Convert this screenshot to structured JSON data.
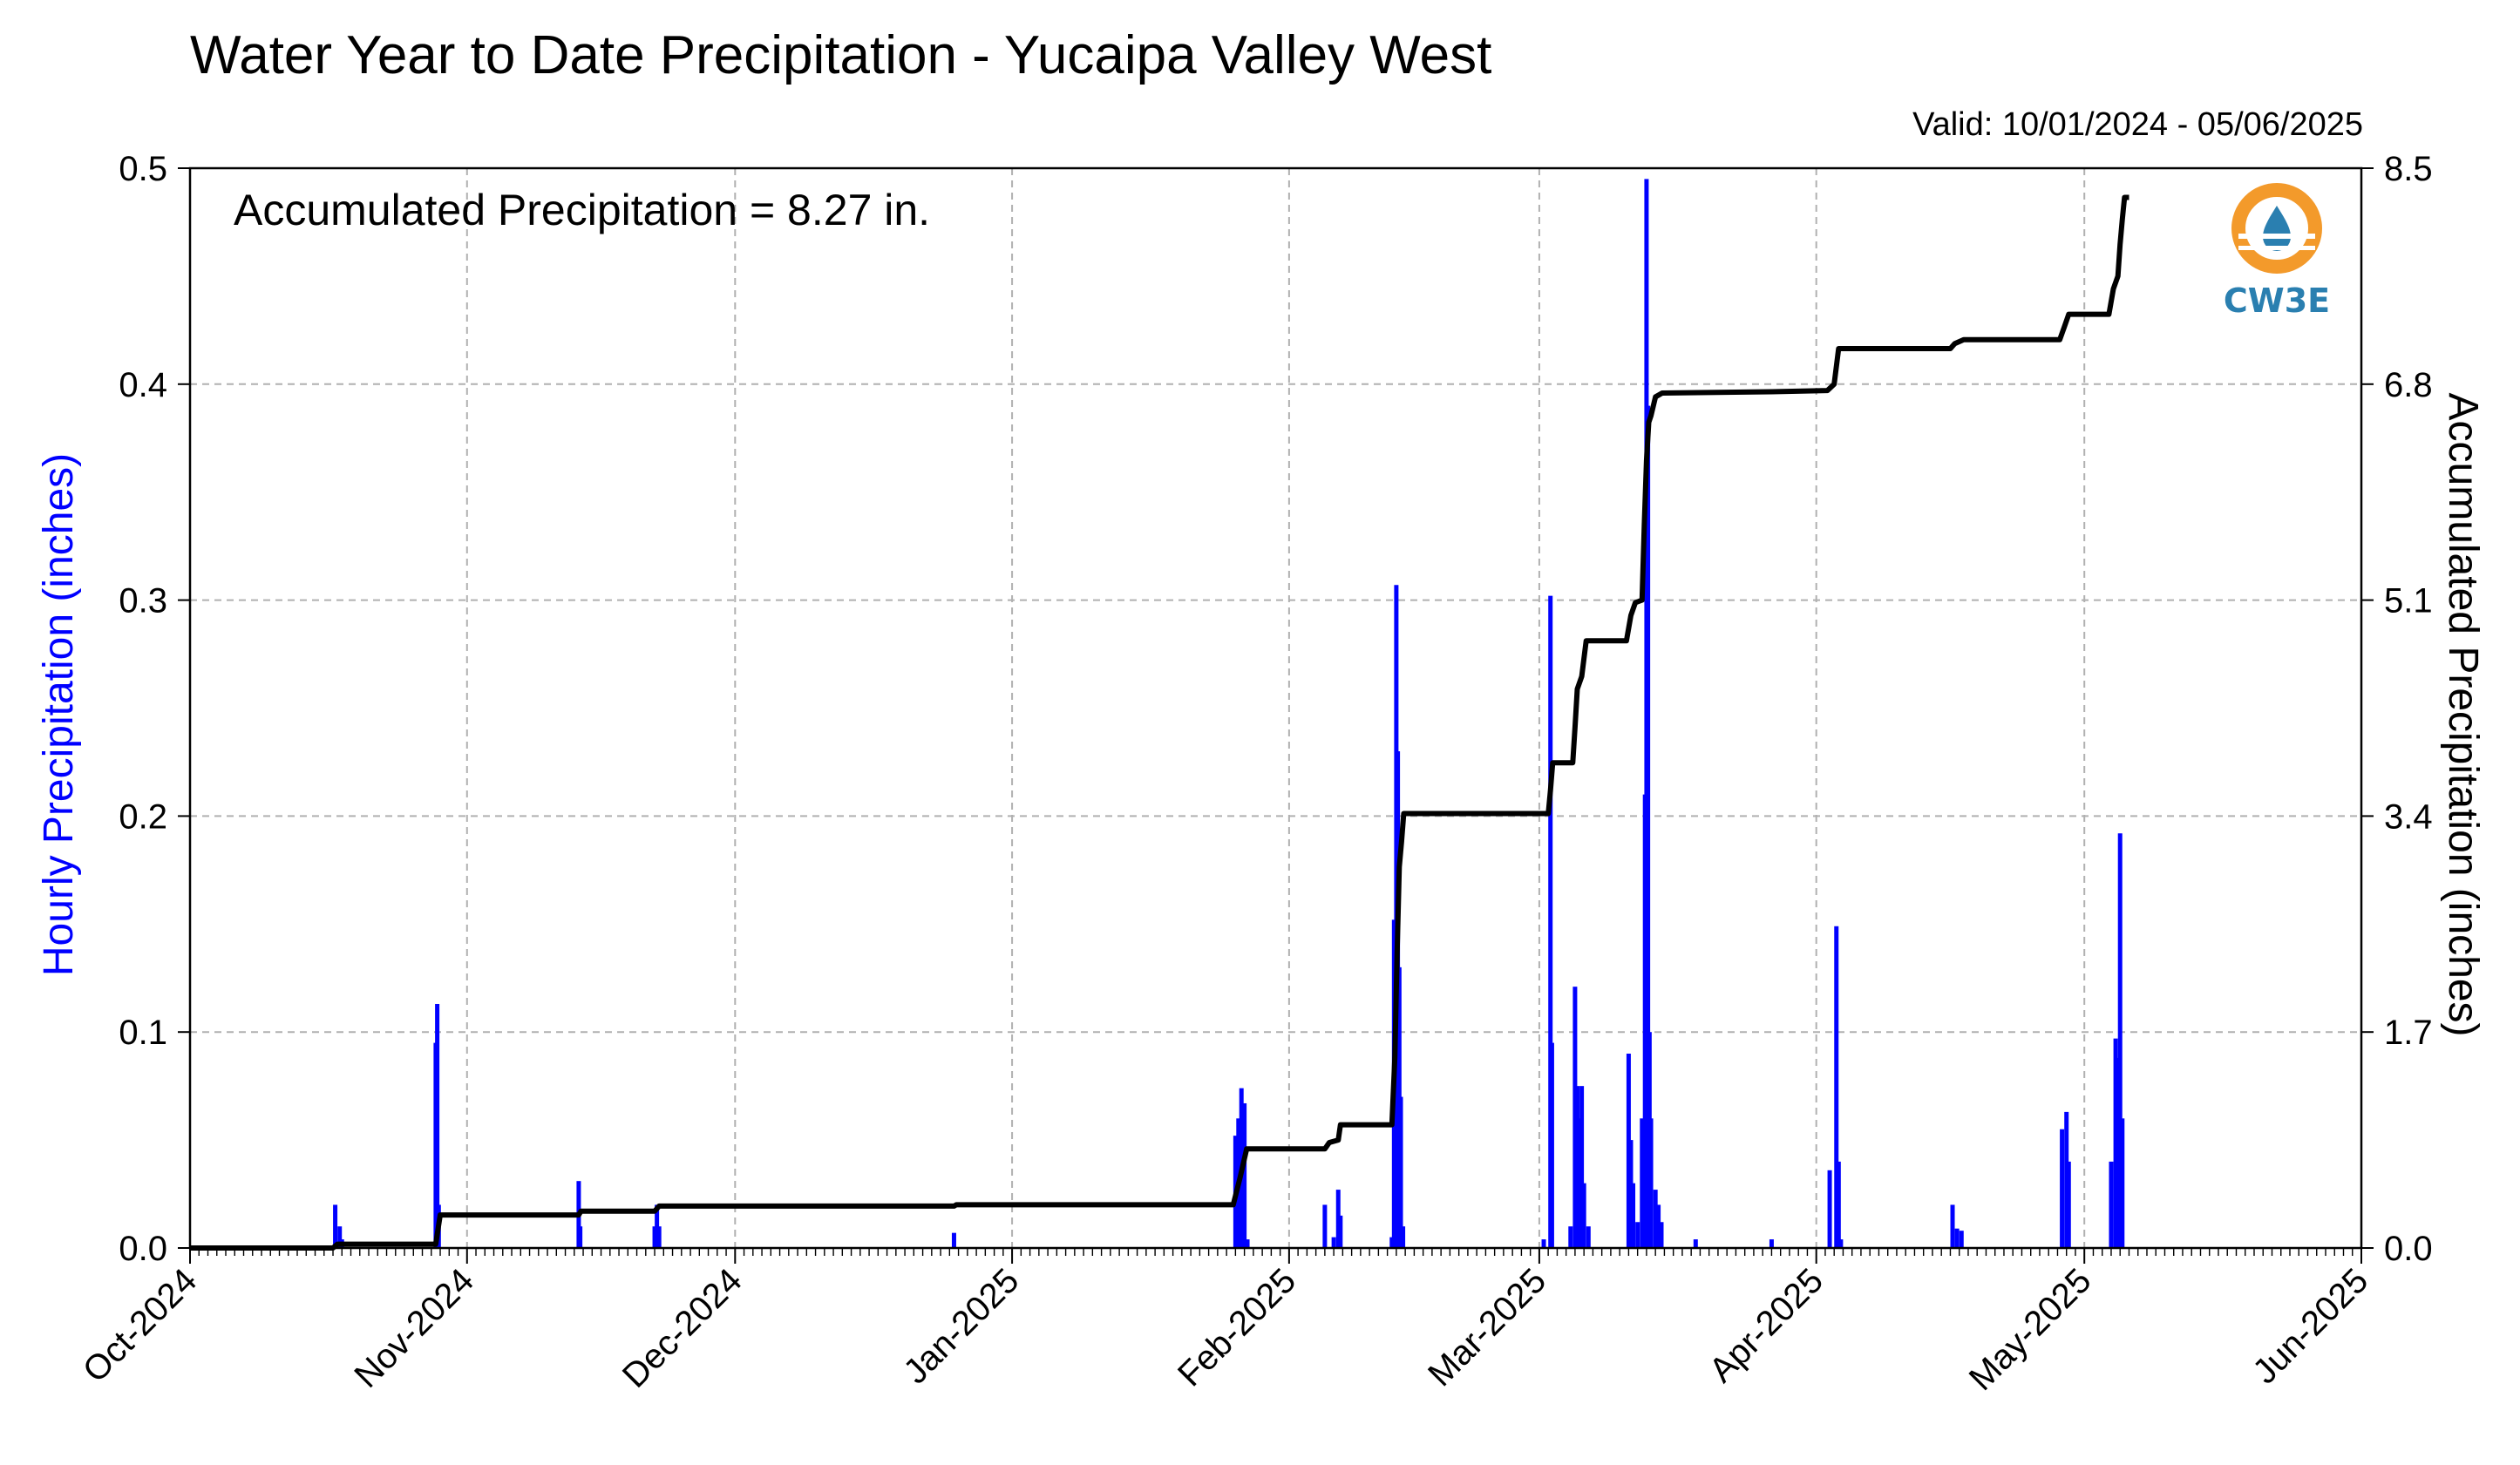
{
  "header": {
    "title": "Water Year to Date Precipitation - Yucaipa Valley West",
    "valid": "Valid: 10/01/2024 - 05/06/2025"
  },
  "annotation": "Accumulated Precipitation = 8.27 in.",
  "logo": {
    "text": "CW3E",
    "colors": {
      "orange": "#f39a2b",
      "blue": "#2a7fb0"
    }
  },
  "colors": {
    "hourly": "#0000ff",
    "accumulated": "#000000",
    "grid": "#b0b0b0"
  },
  "chart_data": {
    "type": "bar",
    "title": "Water Year to Date Precipitation - Yucaipa Valley West",
    "x_start": "2024-10-01",
    "x_end": "2025-06-01",
    "xticks": [
      {
        "date": "2024-10-01",
        "label": "Oct-2024"
      },
      {
        "date": "2024-11-01",
        "label": "Nov-2024"
      },
      {
        "date": "2024-12-01",
        "label": "Dec-2024"
      },
      {
        "date": "2025-01-01",
        "label": "Jan-2025"
      },
      {
        "date": "2025-02-01",
        "label": "Feb-2025"
      },
      {
        "date": "2025-03-01",
        "label": "Mar-2025"
      },
      {
        "date": "2025-04-01",
        "label": "Apr-2025"
      },
      {
        "date": "2025-05-01",
        "label": "May-2025"
      },
      {
        "date": "2025-06-01",
        "label": "Jun-2025"
      }
    ],
    "y_left": {
      "label": "Hourly Precipitation (inches)",
      "range": [
        0,
        0.5
      ],
      "ticks": [
        "0.0",
        "0.1",
        "0.2",
        "0.3",
        "0.4",
        "0.5"
      ]
    },
    "y_right": {
      "label": "Accumulated Precipitation (inches)",
      "range": [
        0,
        8.5
      ],
      "ticks": [
        "0.0",
        "1.7",
        "3.4",
        "5.1",
        "6.8",
        "8.5"
      ]
    },
    "grid": true,
    "series": [
      {
        "name": "Hourly Precipitation",
        "type": "bar",
        "points": [
          [
            "2024-10-17 06:00",
            0.02
          ],
          [
            "2024-10-17 18:00",
            0.01
          ],
          [
            "2024-10-18 00:00",
            0.004
          ],
          [
            "2024-10-28 12:00",
            0.095
          ],
          [
            "2024-10-28 16:00",
            0.113
          ],
          [
            "2024-10-28 20:00",
            0.02
          ],
          [
            "2024-11-13 12:00",
            0.031
          ],
          [
            "2024-11-13 16:00",
            0.01
          ],
          [
            "2024-11-22 00:00",
            0.01
          ],
          [
            "2024-11-22 06:00",
            0.02
          ],
          [
            "2024-11-22 12:00",
            0.01
          ],
          [
            "2024-12-25 12:00",
            0.007
          ],
          [
            "2025-01-26 00:00",
            0.052
          ],
          [
            "2025-01-26 08:00",
            0.06
          ],
          [
            "2025-01-26 16:00",
            0.074
          ],
          [
            "2025-01-27 00:00",
            0.067
          ],
          [
            "2025-01-27 08:00",
            0.004
          ],
          [
            "2025-02-05 00:00",
            0.02
          ],
          [
            "2025-02-06 00:00",
            0.005
          ],
          [
            "2025-02-06 12:00",
            0.027
          ],
          [
            "2025-02-06 18:00",
            0.015
          ],
          [
            "2025-02-12 12:00",
            0.005
          ],
          [
            "2025-02-12 18:00",
            0.152
          ],
          [
            "2025-02-13 00:00",
            0.307
          ],
          [
            "2025-02-13 04:00",
            0.23
          ],
          [
            "2025-02-13 08:00",
            0.13
          ],
          [
            "2025-02-13 12:00",
            0.07
          ],
          [
            "2025-02-13 18:00",
            0.01
          ],
          [
            "2025-03-01 12:00",
            0.004
          ],
          [
            "2025-03-02 06:00",
            0.302
          ],
          [
            "2025-03-02 10:00",
            0.095
          ],
          [
            "2025-03-04 12:00",
            0.01
          ],
          [
            "2025-03-05 00:00",
            0.121
          ],
          [
            "2025-03-05 06:00",
            0.075
          ],
          [
            "2025-03-05 12:00",
            0.06
          ],
          [
            "2025-03-05 18:00",
            0.075
          ],
          [
            "2025-03-06 00:00",
            0.03
          ],
          [
            "2025-03-06 12:00",
            0.01
          ],
          [
            "2025-03-11 00:00",
            0.09
          ],
          [
            "2025-03-11 06:00",
            0.05
          ],
          [
            "2025-03-11 12:00",
            0.03
          ],
          [
            "2025-03-12 00:00",
            0.012
          ],
          [
            "2025-03-12 12:00",
            0.06
          ],
          [
            "2025-03-12 20:00",
            0.21
          ],
          [
            "2025-03-13 00:00",
            0.495
          ],
          [
            "2025-03-13 04:00",
            0.39
          ],
          [
            "2025-03-13 08:00",
            0.1
          ],
          [
            "2025-03-13 12:00",
            0.06
          ],
          [
            "2025-03-14 00:00",
            0.027
          ],
          [
            "2025-03-14 08:00",
            0.02
          ],
          [
            "2025-03-14 16:00",
            0.012
          ],
          [
            "2025-03-18 12:00",
            0.004
          ],
          [
            "2025-03-27 00:00",
            0.004
          ],
          [
            "2025-04-02 12:00",
            0.036
          ],
          [
            "2025-04-03 06:00",
            0.149
          ],
          [
            "2025-04-03 12:00",
            0.04
          ],
          [
            "2025-04-03 18:00",
            0.004
          ],
          [
            "2025-04-16 06:00",
            0.02
          ],
          [
            "2025-04-16 18:00",
            0.009
          ],
          [
            "2025-04-17 06:00",
            0.008
          ],
          [
            "2025-04-28 12:00",
            0.055
          ],
          [
            "2025-04-29 00:00",
            0.063
          ],
          [
            "2025-04-29 06:00",
            0.04
          ],
          [
            "2025-05-04 00:00",
            0.04
          ],
          [
            "2025-05-04 12:00",
            0.097
          ],
          [
            "2025-05-04 18:00",
            0.088
          ],
          [
            "2025-05-05 00:00",
            0.192
          ],
          [
            "2025-05-05 06:00",
            0.06
          ]
        ]
      },
      {
        "name": "Accumulated Precipitation",
        "type": "line",
        "points": [
          [
            "2024-10-01 00:00",
            0.0
          ],
          [
            "2024-10-17 00:00",
            0.0
          ],
          [
            "2024-10-17 12:00",
            0.03
          ],
          [
            "2024-10-28 12:00",
            0.03
          ],
          [
            "2024-10-29 00:00",
            0.26
          ],
          [
            "2024-11-13 12:00",
            0.26
          ],
          [
            "2024-11-13 18:00",
            0.29
          ],
          [
            "2024-11-22 00:00",
            0.29
          ],
          [
            "2024-11-22 12:00",
            0.33
          ],
          [
            "2024-12-25 12:00",
            0.33
          ],
          [
            "2024-12-25 18:00",
            0.34
          ],
          [
            "2025-01-25 18:00",
            0.34
          ],
          [
            "2025-01-26 12:00",
            0.55
          ],
          [
            "2025-01-27 06:00",
            0.78
          ],
          [
            "2025-02-05 00:00",
            0.78
          ],
          [
            "2025-02-05 12:00",
            0.83
          ],
          [
            "2025-02-06 12:00",
            0.85
          ],
          [
            "2025-02-06 18:00",
            0.97
          ],
          [
            "2025-02-12 12:00",
            0.97
          ],
          [
            "2025-02-12 20:00",
            1.5
          ],
          [
            "2025-02-13 02:00",
            2.3
          ],
          [
            "2025-02-13 08:00",
            3.0
          ],
          [
            "2025-02-13 14:00",
            3.2
          ],
          [
            "2025-02-13 20:00",
            3.42
          ],
          [
            "2025-03-02 00:00",
            3.42
          ],
          [
            "2025-03-02 06:00",
            3.6
          ],
          [
            "2025-03-02 12:00",
            3.82
          ],
          [
            "2025-03-04 18:00",
            3.82
          ],
          [
            "2025-03-05 00:00",
            4.1
          ],
          [
            "2025-03-05 06:00",
            4.4
          ],
          [
            "2025-03-05 18:00",
            4.5
          ],
          [
            "2025-03-06 06:00",
            4.78
          ],
          [
            "2025-03-10 18:00",
            4.78
          ],
          [
            "2025-03-11 06:00",
            4.98
          ],
          [
            "2025-03-11 18:00",
            5.08
          ],
          [
            "2025-03-12 12:00",
            5.1
          ],
          [
            "2025-03-12 18:00",
            5.7
          ],
          [
            "2025-03-13 00:00",
            6.2
          ],
          [
            "2025-03-13 06:00",
            6.5
          ],
          [
            "2025-03-13 12:00",
            6.55
          ],
          [
            "2025-03-14 00:00",
            6.7
          ],
          [
            "2025-03-14 18:00",
            6.73
          ],
          [
            "2025-03-27 00:00",
            6.74
          ],
          [
            "2025-04-02 06:00",
            6.75
          ],
          [
            "2025-04-03 00:00",
            6.8
          ],
          [
            "2025-04-03 12:00",
            7.08
          ],
          [
            "2025-04-16 00:00",
            7.08
          ],
          [
            "2025-04-16 12:00",
            7.12
          ],
          [
            "2025-04-17 12:00",
            7.15
          ],
          [
            "2025-04-28 06:00",
            7.15
          ],
          [
            "2025-04-28 18:00",
            7.25
          ],
          [
            "2025-04-29 06:00",
            7.35
          ],
          [
            "2025-05-03 18:00",
            7.35
          ],
          [
            "2025-05-04 06:00",
            7.55
          ],
          [
            "2025-05-04 18:00",
            7.65
          ],
          [
            "2025-05-05 00:00",
            7.9
          ],
          [
            "2025-05-05 06:00",
            8.1
          ],
          [
            "2025-05-05 12:00",
            8.27
          ],
          [
            "2025-05-06 00:00",
            8.27
          ]
        ]
      }
    ]
  }
}
